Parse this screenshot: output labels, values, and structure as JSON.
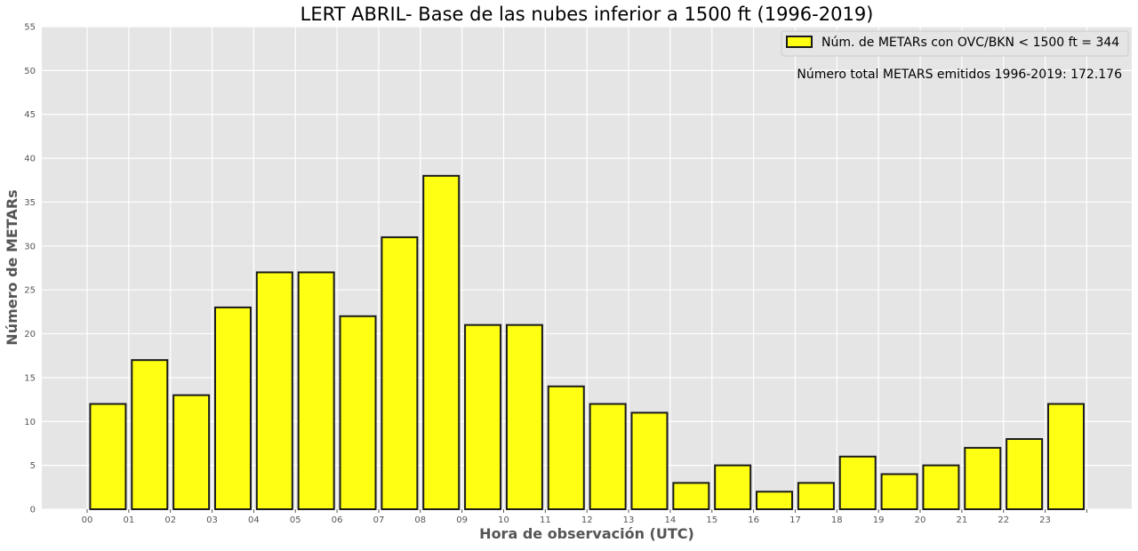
{
  "chart_data": {
    "type": "bar",
    "title": "LERT ABRIL- Base de las nubes inferior a 1500 ft (1996-2019)",
    "xlabel": "Hora de observación (UTC)",
    "ylabel": "Número de METARs",
    "categories": [
      "00",
      "01",
      "02",
      "03",
      "04",
      "05",
      "06",
      "07",
      "08",
      "09",
      "10",
      "11",
      "12",
      "13",
      "14",
      "15",
      "16",
      "17",
      "18",
      "19",
      "20",
      "21",
      "22",
      "23"
    ],
    "series": [
      {
        "name": "Núm. de METARs con OVC/BKN < 1500 ft = 344",
        "values": [
          12,
          17,
          13,
          23,
          27,
          27,
          22,
          31,
          38,
          21,
          21,
          14,
          12,
          11,
          3,
          5,
          2,
          3,
          6,
          4,
          5,
          7,
          8,
          12
        ]
      }
    ],
    "ylim": [
      0,
      55
    ],
    "yticks": [
      0,
      5,
      10,
      15,
      20,
      25,
      30,
      35,
      40,
      45,
      50,
      55
    ],
    "grid": true,
    "legend_position": "top-right",
    "annotation": "Número total METARS emitidos 1996-2019: 172.176",
    "colors": {
      "bar_fill": "#ffff14",
      "bar_edge": "#1a1a1a",
      "plot_background": "#e5e5e5",
      "grid": "#ffffff",
      "tick_text": "#555555",
      "label_text": "#555555",
      "title_text": "#000000"
    }
  }
}
